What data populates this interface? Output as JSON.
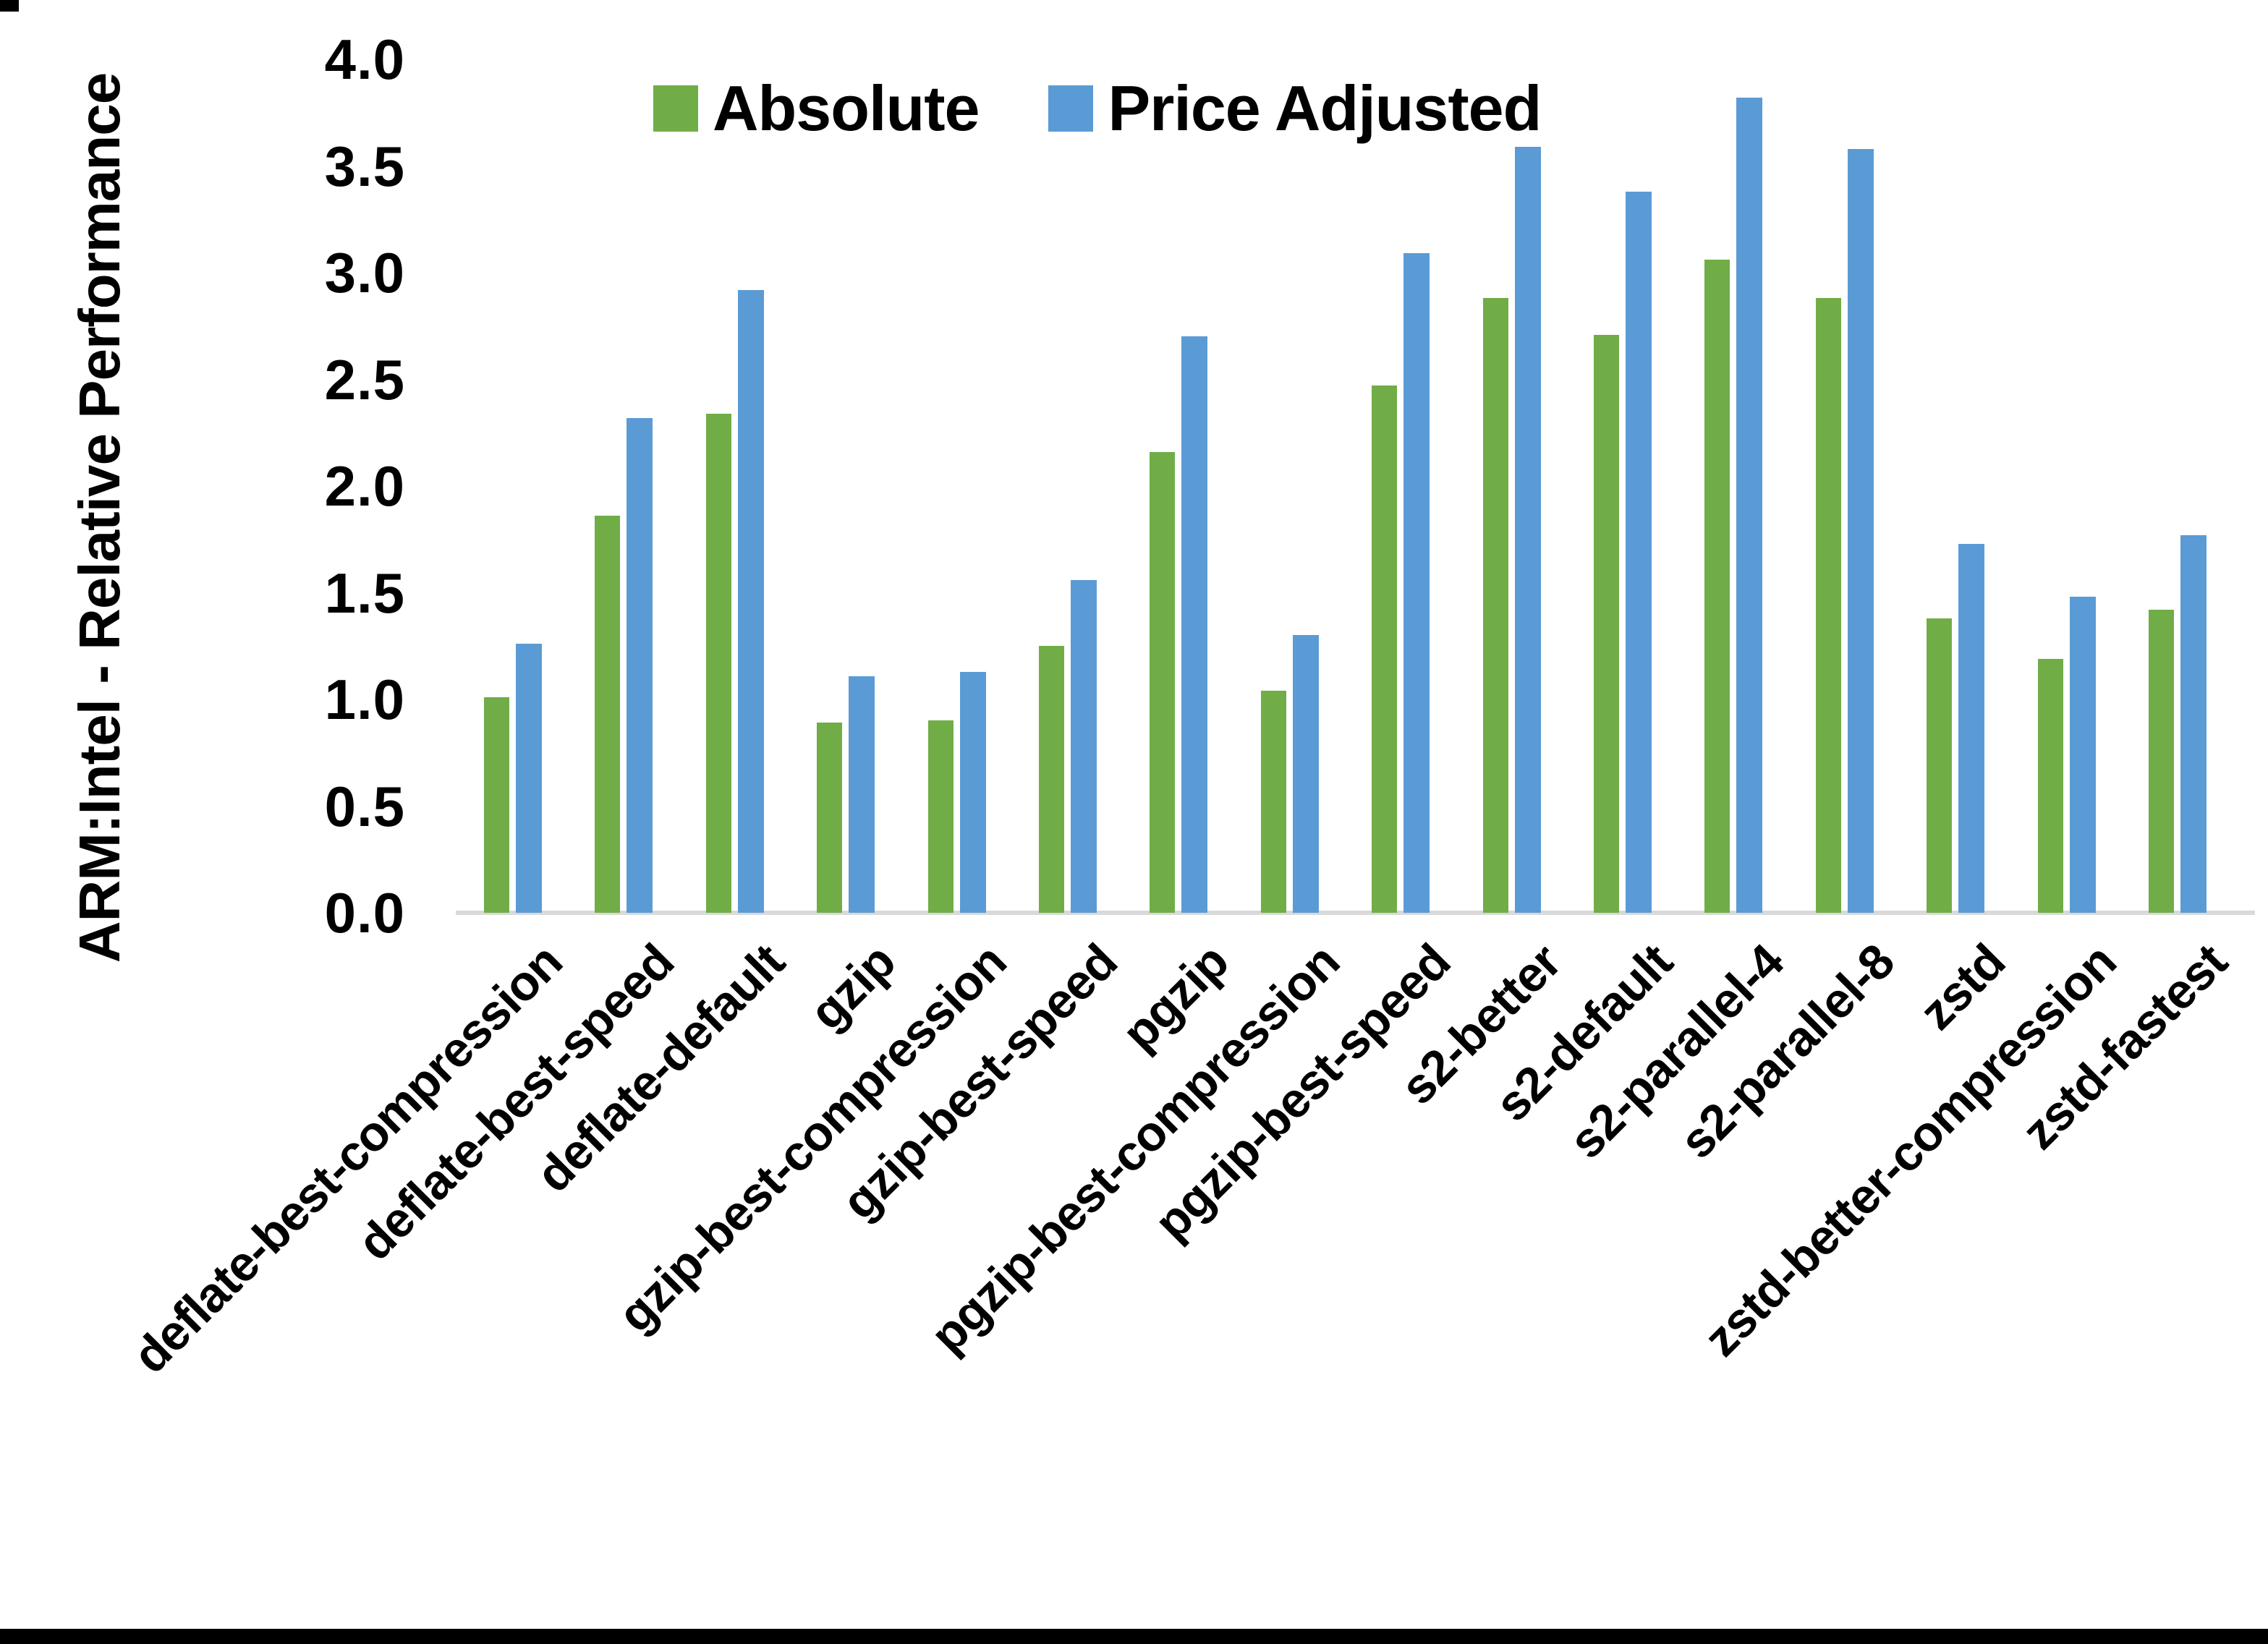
{
  "chart_data": {
    "type": "bar",
    "title": "",
    "ylabel": "ARM:Intel - Relative Performance",
    "xlabel": "",
    "ylim": [
      0.0,
      4.0
    ],
    "ytick_step": 0.5,
    "ytick_labels": [
      "0.0",
      "0.5",
      "1.0",
      "1.5",
      "2.0",
      "2.5",
      "3.0",
      "3.5",
      "4.0"
    ],
    "grid": "off",
    "legend_position": "top",
    "categories": [
      "deflate-best-compression",
      "deflate-best-speed",
      "deflate-default",
      "gzip",
      "gzip-best-compression",
      "gzip-best-speed",
      "pgzip",
      "pgzip-best-compression",
      "pgzip-best-speed",
      "s2-better",
      "s2-default",
      "s2-parallel-4",
      "s2-parallel-8",
      "zstd",
      "zstd-better-compression",
      "zstd-fastest"
    ],
    "series": [
      {
        "name": "Absolute",
        "color": "#70AD47",
        "values": [
          1.01,
          1.86,
          2.34,
          0.89,
          0.9,
          1.25,
          2.16,
          1.04,
          2.47,
          2.88,
          2.71,
          3.06,
          2.88,
          1.38,
          1.19,
          1.42
        ]
      },
      {
        "name": "Price Adjusted",
        "color": "#5B9BD5",
        "values": [
          1.26,
          2.32,
          2.92,
          1.11,
          1.13,
          1.56,
          2.7,
          1.3,
          3.09,
          3.59,
          3.38,
          3.82,
          3.58,
          1.73,
          1.48,
          1.77
        ]
      }
    ]
  },
  "legend": {
    "absolute_label": "Absolute",
    "price_adjusted_label": "Price Adjusted"
  },
  "colors": {
    "absolute": "#70AD47",
    "price_adjusted": "#5B9BD5",
    "axis_line": "#d9d9d9",
    "text": "#000000"
  }
}
